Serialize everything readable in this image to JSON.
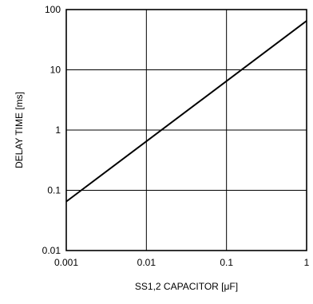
{
  "chart_data": {
    "type": "line",
    "xlabel": "SS1,2 CAPACITOR [μF]",
    "ylabel": "DELAY TIME [ms]",
    "x_scale": "log",
    "y_scale": "log",
    "xlim": [
      0.001,
      1
    ],
    "ylim": [
      0.01,
      100
    ],
    "x_ticks": [
      0.001,
      0.01,
      0.1,
      1
    ],
    "x_tick_labels": [
      "0.001",
      "0.01",
      "0.1",
      "1"
    ],
    "y_ticks": [
      0.01,
      0.1,
      1,
      10,
      100
    ],
    "y_tick_labels": [
      "0.01",
      "0.1",
      "1",
      "10",
      "100"
    ],
    "grid": true,
    "series": [
      {
        "x": [
          0.001,
          1
        ],
        "y": [
          0.065,
          65
        ]
      }
    ],
    "colors": {
      "line": "#000000",
      "grid": "#000000",
      "frame": "#000000"
    }
  }
}
